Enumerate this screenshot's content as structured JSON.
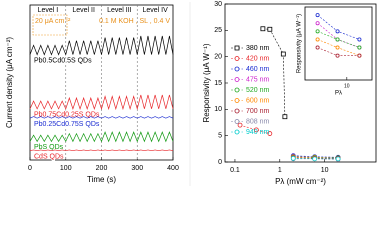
{
  "chart_data": [
    {
      "type": "line",
      "ylabel": "Current density (μA cm⁻²)",
      "xlabel": "Time (s)",
      "x": [
        0,
        10,
        20,
        30,
        40,
        50,
        60,
        70,
        80,
        90,
        100,
        110,
        120,
        130,
        140,
        150,
        160,
        170,
        180,
        190,
        200,
        210,
        220,
        230,
        240,
        250,
        260,
        270,
        280,
        290,
        300,
        310,
        320,
        330,
        340,
        350,
        360,
        370,
        380,
        390,
        400
      ],
      "xlim": [
        0,
        400
      ],
      "xticks": [
        0,
        100,
        200,
        300,
        400
      ],
      "ylim": [
        0,
        100
      ],
      "level_boundaries": [
        100,
        200,
        300
      ],
      "level_labels": [
        "Level I",
        "Level II",
        "Level III",
        "Level IV"
      ],
      "annotations": [
        "20 μA cm⁻²",
        "0.1 M KOH , SL , 0.4 V"
      ],
      "series": [
        {
          "name": "Pb0.5Cd0.5S QDs",
          "color": "#000000",
          "values": [
            68,
            74,
            68,
            74,
            68,
            74,
            68,
            74,
            68,
            74,
            68,
            77,
            68,
            77,
            68,
            77,
            68,
            77,
            68,
            77,
            68,
            79,
            68,
            79,
            68,
            79,
            68,
            79,
            68,
            79,
            68,
            80,
            68,
            80,
            68,
            80,
            68,
            80,
            68,
            80,
            68
          ]
        },
        {
          "name": "Pb0.75Cd0.25S QDs",
          "color": "#e8262a",
          "values": [
            33,
            38,
            33,
            38,
            33,
            38,
            33,
            38,
            33,
            38,
            33,
            40,
            33,
            40,
            33,
            40,
            33,
            40,
            33,
            40,
            33,
            41,
            33,
            41,
            33,
            41,
            33,
            41,
            33,
            41,
            33,
            42,
            33,
            42,
            33,
            42,
            33,
            42,
            33,
            42,
            33
          ]
        },
        {
          "name": "Pb0.25Cd0.75S QDs",
          "color": "#1a2bd1",
          "values": [
            27,
            28,
            27,
            28,
            27,
            28,
            27,
            28,
            27,
            28,
            27,
            28,
            27,
            28,
            27,
            28,
            27,
            28,
            27,
            28,
            27,
            28,
            27,
            28,
            27,
            28,
            27,
            28,
            27,
            28,
            27,
            28,
            27,
            28,
            27,
            28,
            27,
            28,
            27,
            28,
            27
          ]
        },
        {
          "name": "PbS QDs",
          "color": "#119911",
          "values": [
            12,
            16,
            12,
            16,
            12,
            16,
            12,
            16,
            12,
            16,
            12,
            17,
            12,
            17,
            12,
            17,
            12,
            17,
            12,
            17,
            12,
            18,
            12,
            18,
            12,
            18,
            12,
            18,
            12,
            18,
            12,
            18,
            12,
            18,
            12,
            18,
            12,
            18,
            12,
            18,
            12
          ]
        },
        {
          "name": "CdS QDs",
          "color": "#e8262a",
          "values": [
            6,
            6.5,
            6,
            6.5,
            6,
            6.5,
            6,
            6.5,
            6,
            6.5,
            6,
            6.5,
            6,
            6.5,
            6,
            6.5,
            6,
            6.5,
            6,
            6.5,
            6,
            6.5,
            6,
            6.5,
            6,
            6.5,
            6,
            6.5,
            6,
            6.5,
            6,
            6.5,
            6,
            6.5,
            6,
            6.5,
            6,
            6.5,
            6,
            6.5,
            6
          ]
        }
      ]
    },
    {
      "type": "scatter",
      "xlabel": "Pλ (mW cm⁻²)",
      "ylabel": "Responsivity (μA W⁻¹)",
      "xlog": true,
      "xlim": [
        0.06,
        140
      ],
      "xticks": [
        0.1,
        1,
        10
      ],
      "ylim": [
        0,
        30
      ],
      "yticks": [
        0,
        5,
        10,
        15,
        20,
        25,
        30
      ],
      "dashed": true,
      "legend": "left",
      "series": [
        {
          "name": "380 nm",
          "color": "#000000",
          "marker": "square",
          "x": [
            0.42,
            0.6,
            1.2,
            1.3
          ],
          "values": [
            25.3,
            25.2,
            20.5,
            8.6
          ]
        },
        {
          "name": "420 nm",
          "color": "#e8262a",
          "marker": "circle",
          "x": [
            0.13,
            0.3,
            0.6
          ],
          "values": [
            7.0,
            6.1,
            5.4
          ]
        },
        {
          "name": "460 nm",
          "color": "#1a2bd1",
          "marker": "circle",
          "x": [
            2,
            6,
            20
          ],
          "values": [
            1.2,
            1.0,
            0.9
          ]
        },
        {
          "name": "475 nm",
          "color": "#cc22cc",
          "marker": "circle",
          "x": [
            2,
            6,
            20
          ],
          "values": [
            1.1,
            0.9,
            0.8
          ]
        },
        {
          "name": "520 nm",
          "color": "#22aa22",
          "marker": "circle",
          "x": [
            2,
            6,
            20
          ],
          "values": [
            1.0,
            0.9,
            0.8
          ]
        },
        {
          "name": "600 nm",
          "color": "#ff8800",
          "marker": "circle",
          "x": [
            2,
            6,
            20
          ],
          "values": [
            0.9,
            0.8,
            0.7
          ]
        },
        {
          "name": "700 nm",
          "color": "#aa2233",
          "marker": "circle",
          "x": [
            2,
            6,
            20
          ],
          "values": [
            0.8,
            0.7,
            0.7
          ]
        },
        {
          "name": "808 nm",
          "color": "#8888aa",
          "marker": "circle",
          "x": [
            2,
            6,
            20
          ],
          "values": [
            0.6,
            0.6,
            0.5
          ]
        },
        {
          "name": "940 nm",
          "color": "#00cccc",
          "marker": "circle",
          "x": [
            2,
            6,
            20
          ],
          "values": [
            0.7,
            0.6,
            0.6
          ]
        }
      ]
    },
    {
      "type": "scatter",
      "xlabel": "Pλ",
      "ylabel": "Responsivity (μA W⁻¹)",
      "xlog": true,
      "xlim": [
        1,
        40
      ],
      "xticks": [
        10
      ],
      "ylim": [
        0.4,
        1.3
      ],
      "dashed": true,
      "series": [
        {
          "name": "460 nm",
          "color": "#1a2bd1",
          "marker": "circle",
          "x": [
            2,
            6,
            20
          ],
          "values": [
            1.2,
            1.0,
            0.9
          ]
        },
        {
          "name": "475 nm",
          "color": "#cc22cc",
          "marker": "circle",
          "x": [
            2,
            6,
            20
          ],
          "values": [
            1.1,
            0.9,
            0.8
          ]
        },
        {
          "name": "520 nm",
          "color": "#22aa22",
          "marker": "circle",
          "x": [
            2,
            6,
            20
          ],
          "values": [
            1.0,
            0.9,
            0.8
          ]
        },
        {
          "name": "600 nm",
          "color": "#ff8800",
          "marker": "circle",
          "x": [
            2,
            6,
            20
          ],
          "values": [
            0.9,
            0.8,
            0.7
          ]
        },
        {
          "name": "700 nm",
          "color": "#aa2233",
          "marker": "circle",
          "x": [
            2,
            6,
            20
          ],
          "values": [
            0.8,
            0.7,
            0.7
          ]
        }
      ]
    }
  ]
}
